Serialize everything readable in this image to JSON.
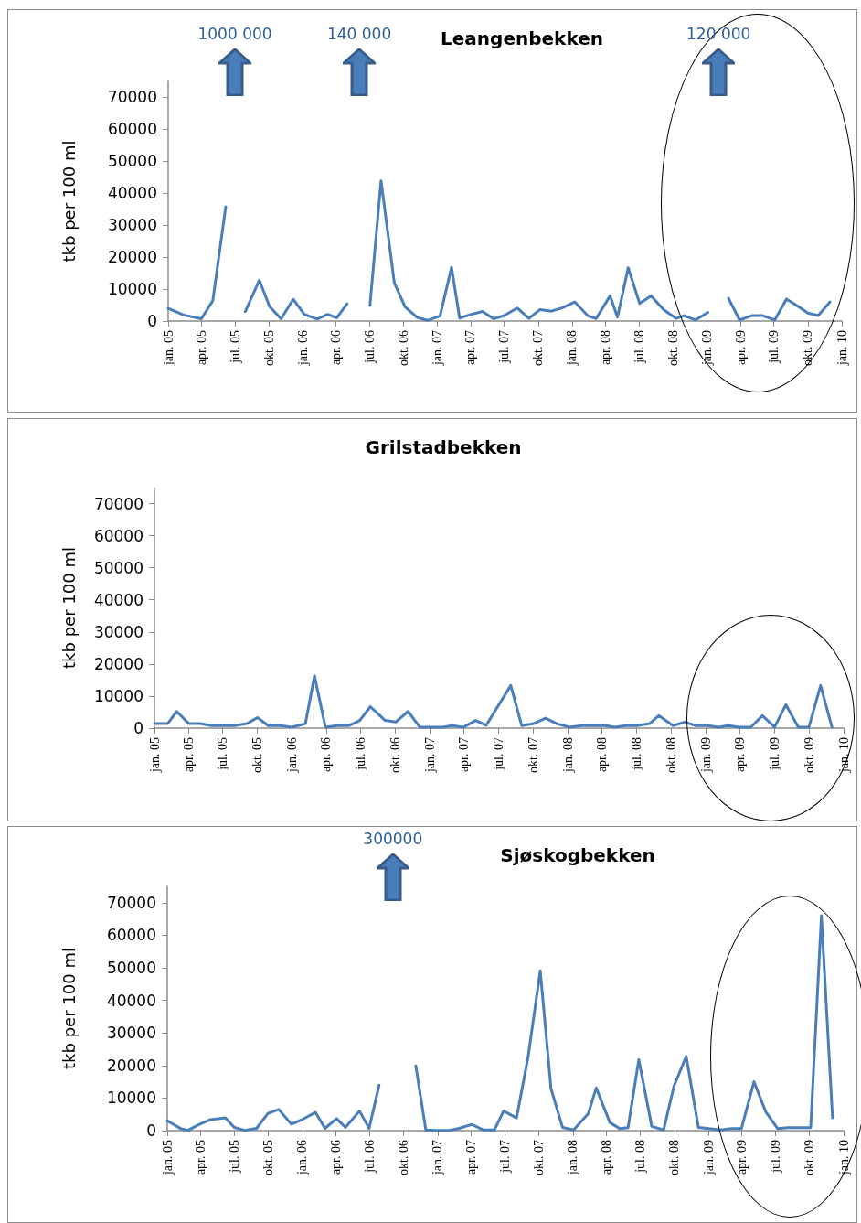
{
  "chart_data": [
    {
      "type": "line",
      "title": "Leangenbekken",
      "ylabel": "tkb per 100 ml",
      "marker": "none",
      "xlim": [
        "2005-01-01",
        "2010-01-01"
      ],
      "xticks": [
        {
          "value": "2005-01-01",
          "label": "jan. 05"
        },
        {
          "value": "2005-04-01",
          "label": "apr. 05"
        },
        {
          "value": "2005-07-01",
          "label": "jul. 05"
        },
        {
          "value": "2005-10-01",
          "label": "okt. 05"
        },
        {
          "value": "2006-01-01",
          "label": "jan. 06"
        },
        {
          "value": "2006-04-01",
          "label": "apr. 06"
        },
        {
          "value": "2006-07-01",
          "label": "jul. 06"
        },
        {
          "value": "2006-10-01",
          "label": "okt. 06"
        },
        {
          "value": "2007-01-01",
          "label": "jan. 07"
        },
        {
          "value": "2007-04-01",
          "label": "apr. 07"
        },
        {
          "value": "2007-07-01",
          "label": "jul. 07"
        },
        {
          "value": "2007-10-01",
          "label": "okt. 07"
        },
        {
          "value": "2008-01-01",
          "label": "jan. 08"
        },
        {
          "value": "2008-04-01",
          "label": "apr. 08"
        },
        {
          "value": "2008-07-01",
          "label": "jul. 08"
        },
        {
          "value": "2008-10-01",
          "label": "okt. 08"
        },
        {
          "value": "2009-01-01",
          "label": "jan. 09"
        },
        {
          "value": "2009-04-01",
          "label": "apr. 09"
        },
        {
          "value": "2009-07-01",
          "label": "jul. 09"
        },
        {
          "value": "2009-10-01",
          "label": "okt. 09"
        },
        {
          "value": "2010-01-01",
          "label": "jan. 10"
        }
      ],
      "ylim": [
        0,
        75000
      ],
      "yticks": [
        0,
        10000,
        20000,
        30000,
        40000,
        50000,
        60000,
        70000
      ],
      "x": [
        "2005-01-01",
        "2005-02-12",
        "2005-04-01",
        "2005-05-02",
        "2005-06-06",
        "2005-07-01",
        "2005-07-29",
        "2005-09-05",
        "2005-10-03",
        "2005-11-03",
        "2005-12-06",
        "2006-01-05",
        "2006-02-09",
        "2006-03-09",
        "2006-04-03",
        "2006-05-01",
        "2006-06-03",
        "2006-07-02",
        "2006-08-01",
        "2006-09-06",
        "2006-10-05",
        "2006-11-07",
        "2006-12-05",
        "2007-01-08",
        "2007-02-08",
        "2007-03-02",
        "2007-04-03",
        "2007-05-03",
        "2007-06-02",
        "2007-07-01",
        "2007-08-05",
        "2007-09-06",
        "2007-10-06",
        "2007-11-06",
        "2007-12-05",
        "2008-01-08",
        "2008-02-12",
        "2008-03-06",
        "2008-04-13",
        "2008-05-03",
        "2008-06-01",
        "2008-07-02",
        "2008-08-02",
        "2008-09-05",
        "2008-10-09",
        "2008-10-31",
        "2008-11-30",
        "2009-01-03",
        "2009-02-01",
        "2009-02-28",
        "2009-03-30",
        "2009-05-02",
        "2009-06-01",
        "2009-07-03",
        "2009-08-04",
        "2009-09-02",
        "2009-10-01",
        "2009-10-29",
        "2009-11-30"
      ],
      "series": [
        {
          "color": "#4a7ebb",
          "values": [
            4000,
            1900,
            700,
            6400,
            35800,
            null,
            3000,
            12800,
            4500,
            700,
            6800,
            2100,
            600,
            2100,
            1000,
            5400,
            null,
            4900,
            43900,
            12000,
            4500,
            1100,
            200,
            1600,
            16800,
            900,
            2100,
            3000,
            700,
            1700,
            4100,
            800,
            3600,
            3100,
            4100,
            6000,
            1700,
            800,
            7900,
            1200,
            16700,
            5500,
            7900,
            3600,
            800,
            1700,
            300,
            2700,
            null,
            7100,
            300,
            1700,
            1700,
            300,
            6900,
            4800,
            2500,
            1700,
            6000
          ]
        }
      ],
      "annotations": [
        "1000 000",
        "140 000",
        "120 000"
      ]
    },
    {
      "type": "line",
      "title": "Grilstadbekken",
      "ylabel": "tkb per 100 ml",
      "marker": "none",
      "xlim": [
        "2005-01-01",
        "2010-01-01"
      ],
      "xticks": [
        {
          "value": "2005-01-01",
          "label": "jan. 05"
        },
        {
          "value": "2005-04-01",
          "label": "apr. 05"
        },
        {
          "value": "2005-07-01",
          "label": "jul. 05"
        },
        {
          "value": "2005-10-01",
          "label": "okt. 05"
        },
        {
          "value": "2006-01-01",
          "label": "jan. 06"
        },
        {
          "value": "2006-04-01",
          "label": "apr. 06"
        },
        {
          "value": "2006-07-01",
          "label": "jul. 06"
        },
        {
          "value": "2006-10-01",
          "label": "okt. 06"
        },
        {
          "value": "2007-01-01",
          "label": "jan. 07"
        },
        {
          "value": "2007-04-01",
          "label": "apr. 07"
        },
        {
          "value": "2007-07-01",
          "label": "jul. 07"
        },
        {
          "value": "2007-10-01",
          "label": "okt. 07"
        },
        {
          "value": "2008-01-01",
          "label": "jan. 08"
        },
        {
          "value": "2008-04-01",
          "label": "apr. 08"
        },
        {
          "value": "2008-07-01",
          "label": "jul. 08"
        },
        {
          "value": "2008-10-01",
          "label": "okt. 08"
        },
        {
          "value": "2009-01-01",
          "label": "jan. 09"
        },
        {
          "value": "2009-04-01",
          "label": "apr. 09"
        },
        {
          "value": "2009-07-01",
          "label": "jul. 09"
        },
        {
          "value": "2009-10-01",
          "label": "okt. 09"
        },
        {
          "value": "2010-01-01",
          "label": "jan. 10"
        }
      ],
      "ylim": [
        0,
        75000
      ],
      "yticks": [
        0,
        10000,
        20000,
        30000,
        40000,
        50000,
        60000,
        70000
      ],
      "x": [
        "2005-01-01",
        "2005-02-05",
        "2005-03-01",
        "2005-04-02",
        "2005-05-02",
        "2005-06-01",
        "2005-07-03",
        "2005-08-01",
        "2005-09-03",
        "2005-10-01",
        "2005-10-29",
        "2005-11-30",
        "2005-12-31",
        "2006-02-05",
        "2006-03-01",
        "2006-03-30",
        "2006-04-30",
        "2006-06-01",
        "2006-06-29",
        "2006-07-27",
        "2006-09-04",
        "2006-10-02",
        "2006-11-04",
        "2006-12-05",
        "2007-01-03",
        "2007-02-04",
        "2007-03-01",
        "2007-03-31",
        "2007-05-02",
        "2007-05-30",
        "2007-08-03",
        "2007-09-01",
        "2007-10-03",
        "2007-11-03",
        "2007-12-03",
        "2008-01-06",
        "2008-02-08",
        "2008-03-10",
        "2008-04-10",
        "2008-05-05",
        "2008-06-03",
        "2008-07-03",
        "2008-08-05",
        "2008-08-29",
        "2008-10-06",
        "2008-11-06",
        "2008-12-04",
        "2009-01-05",
        "2009-02-04",
        "2009-03-01",
        "2009-03-31",
        "2009-04-30",
        "2009-05-31",
        "2009-07-02",
        "2009-08-01",
        "2009-09-03",
        "2009-10-01",
        "2009-11-01",
        "2009-12-01"
      ],
      "series": [
        {
          "color": "#4a7ebb",
          "values": [
            1400,
            1400,
            5200,
            1400,
            1400,
            800,
            800,
            800,
            1400,
            3300,
            800,
            800,
            300,
            1400,
            16300,
            300,
            800,
            800,
            2400,
            6700,
            2400,
            1900,
            5200,
            300,
            300,
            300,
            800,
            300,
            2400,
            900,
            13300,
            800,
            1400,
            3100,
            1400,
            300,
            800,
            800,
            800,
            300,
            800,
            800,
            1400,
            3900,
            800,
            1900,
            800,
            800,
            300,
            800,
            300,
            300,
            3900,
            300,
            7300,
            300,
            300,
            13300,
            300
          ]
        }
      ]
    },
    {
      "type": "line",
      "title": "Sjøskogbekken",
      "ylabel": "tkb per 100 ml",
      "marker": "none",
      "xlim": [
        "2005-01-01",
        "2010-01-01"
      ],
      "xticks": [
        {
          "value": "2005-01-01",
          "label": "jan. 05"
        },
        {
          "value": "2005-04-01",
          "label": "apr. 05"
        },
        {
          "value": "2005-07-01",
          "label": "jul. 05"
        },
        {
          "value": "2005-10-01",
          "label": "okt. 05"
        },
        {
          "value": "2006-01-01",
          "label": "jan. 06"
        },
        {
          "value": "2006-04-01",
          "label": "apr. 06"
        },
        {
          "value": "2006-07-01",
          "label": "jul. 06"
        },
        {
          "value": "2006-10-01",
          "label": "okt. 06"
        },
        {
          "value": "2007-01-01",
          "label": "jan. 07"
        },
        {
          "value": "2007-04-01",
          "label": "apr. 07"
        },
        {
          "value": "2007-07-01",
          "label": "jul. 07"
        },
        {
          "value": "2007-10-01",
          "label": "okt. 07"
        },
        {
          "value": "2008-01-01",
          "label": "jan. 08"
        },
        {
          "value": "2008-04-01",
          "label": "apr. 08"
        },
        {
          "value": "2008-07-01",
          "label": "jul. 08"
        },
        {
          "value": "2008-10-01",
          "label": "okt. 08"
        },
        {
          "value": "2009-01-01",
          "label": "jan. 09"
        },
        {
          "value": "2009-04-01",
          "label": "apr. 09"
        },
        {
          "value": "2009-07-01",
          "label": "jul. 09"
        },
        {
          "value": "2009-10-01",
          "label": "okt. 09"
        },
        {
          "value": "2010-01-01",
          "label": "jan. 10"
        }
      ],
      "ylim": [
        0,
        75000
      ],
      "yticks": [
        0,
        10000,
        20000,
        30000,
        40000,
        50000,
        60000,
        70000
      ],
      "x": [
        "2005-01-01",
        "2005-02-07",
        "2005-02-26",
        "2005-03-26",
        "2005-04-28",
        "2005-06-07",
        "2005-07-01",
        "2005-07-29",
        "2005-08-30",
        "2005-09-30",
        "2005-10-29",
        "2005-12-02",
        "2006-01-02",
        "2006-02-05",
        "2006-03-03",
        "2006-04-03",
        "2006-04-27",
        "2006-06-04",
        "2006-06-30",
        "2006-07-27",
        "2006-09-02",
        "2006-11-03",
        "2006-11-30",
        "2006-12-30",
        "2007-02-02",
        "2007-02-28",
        "2007-04-03",
        "2007-05-05",
        "2007-06-03",
        "2007-06-28",
        "2007-08-02",
        "2007-09-02",
        "2007-10-05",
        "2007-11-03",
        "2007-12-04",
        "2008-01-03",
        "2008-02-12",
        "2008-03-04",
        "2008-04-10",
        "2008-05-07",
        "2008-05-29",
        "2008-06-27",
        "2008-08-01",
        "2008-09-02",
        "2008-09-30",
        "2008-11-02",
        "2008-12-05",
        "2009-01-03",
        "2009-02-01",
        "2009-02-28",
        "2009-03-31",
        "2009-05-04",
        "2009-06-05",
        "2009-07-07",
        "2009-08-03",
        "2009-09-01",
        "2009-10-04",
        "2009-11-02",
        "2009-12-02"
      ],
      "series": [
        {
          "color": "#4a7ebb",
          "values": [
            3000,
            600,
            100,
            1800,
            3400,
            3900,
            1000,
            100,
            700,
            5300,
            6500,
            2000,
            3500,
            5600,
            700,
            3700,
            1000,
            6000,
            700,
            14000,
            null,
            19900,
            200,
            100,
            100,
            700,
            1900,
            200,
            200,
            6000,
            3900,
            22500,
            49100,
            12900,
            1000,
            200,
            5300,
            13100,
            2500,
            600,
            900,
            21800,
            1300,
            200,
            13700,
            22800,
            1000,
            600,
            200,
            600,
            600,
            15000,
            5700,
            600,
            900,
            900,
            900,
            66000,
            3900
          ]
        }
      ],
      "annotations": [
        "300000"
      ]
    }
  ]
}
